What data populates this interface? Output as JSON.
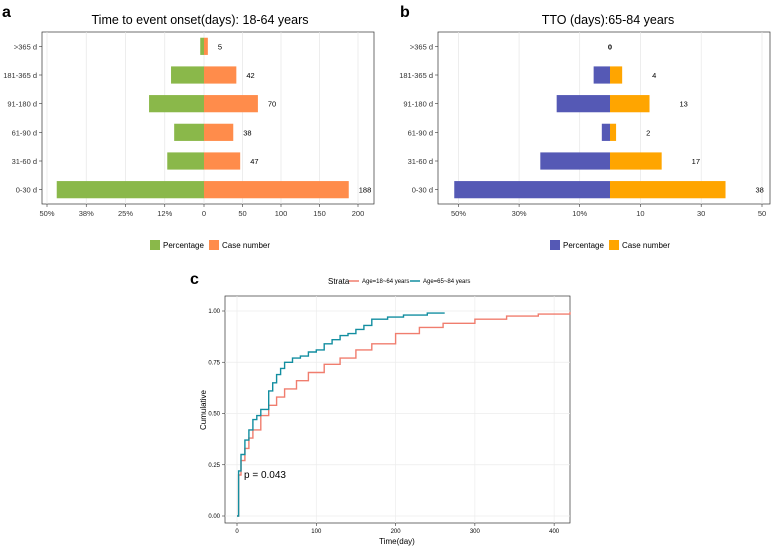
{
  "panels": {
    "a": "a",
    "b": "b",
    "c": "c"
  },
  "chart_data": [
    {
      "id": "a",
      "type": "bar",
      "title": "Time to event onset(days): 18-64 years",
      "categories": [
        "0-30 d",
        "31-60 d",
        "61-90 d",
        "91-180 d",
        "181-365 d",
        ">365 d"
      ],
      "series": [
        {
          "name": "Percentage",
          "values": [
            46.9,
            11.7,
            9.5,
            17.5,
            10.5,
            1.2
          ],
          "color": "#8ab84a"
        },
        {
          "name": "Case number",
          "values": [
            188,
            47,
            38,
            70,
            42,
            5
          ],
          "color": "#ff8c4b"
        }
      ],
      "value_labels": [
        "188",
        "47",
        "38",
        "70",
        "42",
        "5"
      ],
      "left_ticks": [
        "50%",
        "38%",
        "25%",
        "12%",
        "0"
      ],
      "right_ticks": [
        "50",
        "100",
        "150",
        "200"
      ],
      "legend": [
        "Percentage",
        "Case number"
      ]
    },
    {
      "id": "b",
      "type": "bar",
      "title": "TTO (days):65-84 years",
      "categories": [
        "0-30 d",
        "31-60 d",
        "61-90 d",
        "91-180 d",
        "181-365 d",
        ">365 d"
      ],
      "series": [
        {
          "name": "Percentage",
          "values": [
            51.4,
            23.0,
            2.7,
            17.6,
            5.4,
            0
          ],
          "color": "#5559b5"
        },
        {
          "name": "Case number",
          "values": [
            38,
            17,
            2,
            13,
            4,
            0
          ],
          "color": "#ffa500"
        }
      ],
      "value_labels": [
        "38",
        "17",
        "2",
        "13",
        "4",
        "0"
      ],
      "left_ticks": [
        "50%",
        "30%",
        "10%"
      ],
      "right_ticks": [
        "10",
        "30",
        "50"
      ],
      "legend": [
        "Percentage",
        "Case number"
      ]
    },
    {
      "id": "c",
      "type": "line",
      "legend_title": "Strata",
      "series": [
        {
          "name": "Age=18~64 years",
          "color": "#f07d6e",
          "x": [
            0,
            2,
            5,
            10,
            15,
            20,
            30,
            40,
            50,
            60,
            75,
            90,
            110,
            130,
            150,
            170,
            200,
            230,
            260,
            300,
            340,
            380,
            420
          ],
          "y": [
            0,
            0.2,
            0.27,
            0.33,
            0.38,
            0.42,
            0.49,
            0.54,
            0.58,
            0.62,
            0.66,
            0.7,
            0.74,
            0.77,
            0.81,
            0.84,
            0.89,
            0.92,
            0.94,
            0.96,
            0.975,
            0.985,
            0.995
          ]
        },
        {
          "name": "Age=65~84 years",
          "color": "#128ea0",
          "x": [
            0,
            2,
            5,
            10,
            15,
            20,
            25,
            30,
            40,
            45,
            50,
            55,
            60,
            70,
            80,
            90,
            100,
            110,
            120,
            130,
            140,
            150,
            160,
            170,
            190,
            210,
            240,
            262
          ],
          "y": [
            0,
            0.22,
            0.3,
            0.37,
            0.42,
            0.47,
            0.49,
            0.52,
            0.61,
            0.65,
            0.69,
            0.72,
            0.75,
            0.77,
            0.78,
            0.8,
            0.81,
            0.84,
            0.86,
            0.88,
            0.89,
            0.91,
            0.93,
            0.96,
            0.97,
            0.98,
            0.99,
            0.99
          ]
        }
      ],
      "x_ticks": [
        0,
        100,
        200,
        300,
        400
      ],
      "y_ticks": [
        "0.00",
        "0.25",
        "0.50",
        "0.75",
        "1.00"
      ],
      "xlabel": "Time(day)",
      "ylabel": "Cumulative",
      "xlim": [
        0,
        420
      ],
      "ylim": [
        0,
        1
      ],
      "annotation": "p = 0.043"
    }
  ]
}
